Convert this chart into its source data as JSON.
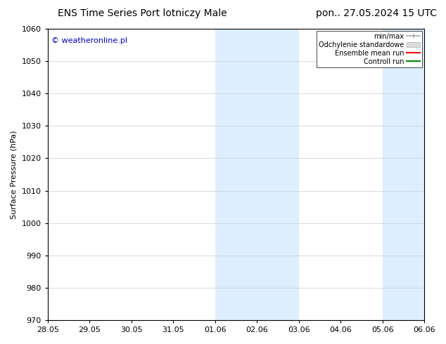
{
  "title_left": "ENS Time Series Port lotniczy Male",
  "title_right": "pon.. 27.05.2024 15 UTC",
  "ylabel": "Surface Pressure (hPa)",
  "watermark": "© weatheronline.pl",
  "watermark_color": "#0000cc",
  "ylim": [
    970,
    1060
  ],
  "yticks": [
    970,
    980,
    990,
    1000,
    1010,
    1020,
    1030,
    1040,
    1050,
    1060
  ],
  "xtick_labels": [
    "28.05",
    "29.05",
    "30.05",
    "31.05",
    "01.06",
    "02.06",
    "03.06",
    "04.06",
    "05.06",
    "06.06"
  ],
  "xtick_positions": [
    0,
    1,
    2,
    3,
    4,
    5,
    6,
    7,
    8,
    9
  ],
  "xlim": [
    0,
    9
  ],
  "shaded_regions": [
    {
      "start": 4,
      "end": 6,
      "color": "#ddeeff"
    },
    {
      "start": 8,
      "end": 9,
      "color": "#ddeeff"
    }
  ],
  "legend_entries": [
    {
      "label": "min/max",
      "color": "#aaaaaa",
      "style": "line_with_caps"
    },
    {
      "label": "Odchylenie standardowe",
      "color": "#cccccc",
      "style": "filled_line"
    },
    {
      "label": "Ensemble mean run",
      "color": "#ff0000",
      "style": "line"
    },
    {
      "label": "Controll run",
      "color": "#008800",
      "style": "line"
    }
  ],
  "background_color": "#ffffff",
  "grid_color": "#cccccc",
  "title_fontsize": 10,
  "axis_fontsize": 8,
  "tick_fontsize": 8,
  "watermark_fontsize": 8
}
